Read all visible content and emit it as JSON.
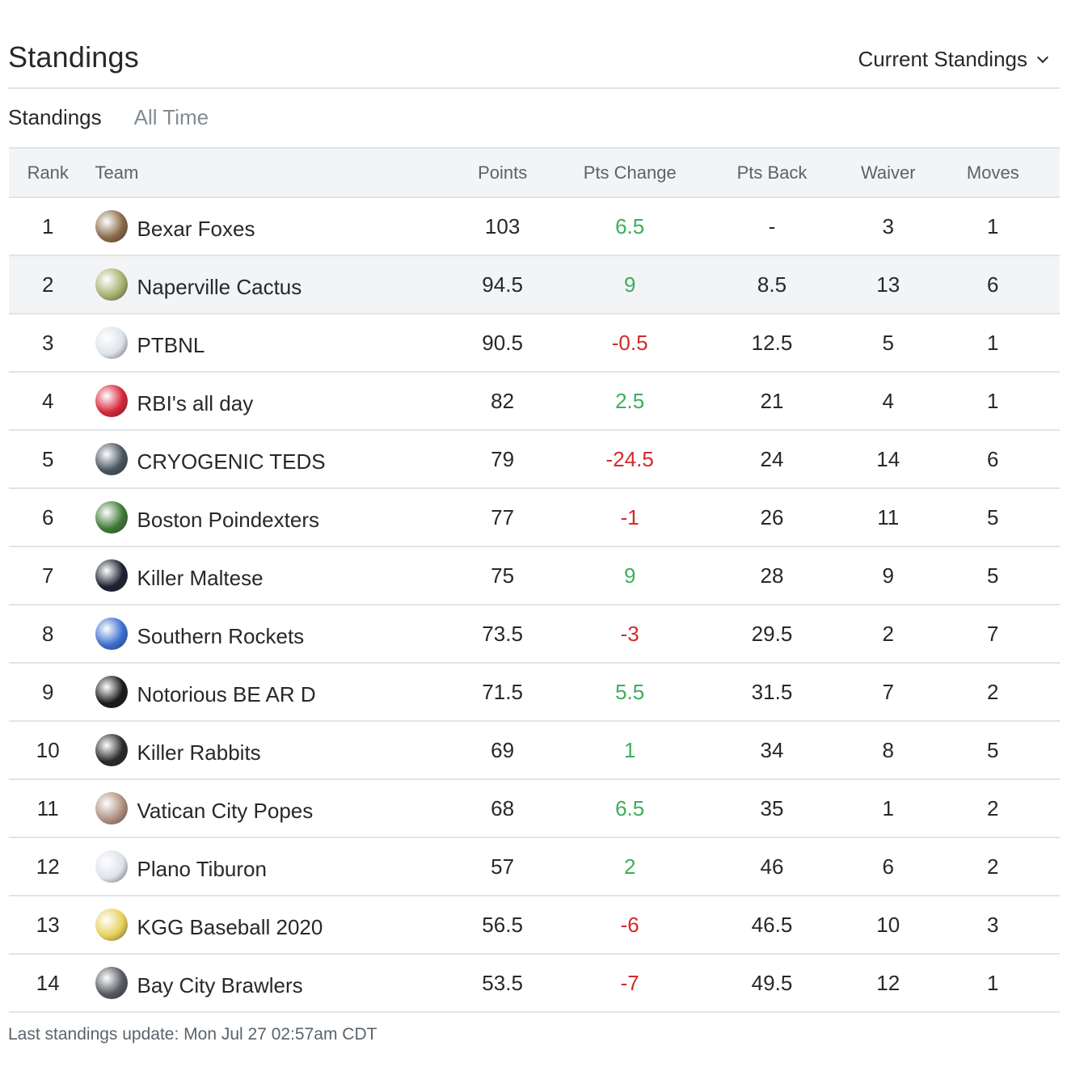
{
  "header": {
    "title": "Standings",
    "dropdown_label": "Current Standings"
  },
  "tabs": [
    {
      "label": "Standings"
    },
    {
      "label": "All Time"
    }
  ],
  "columns": {
    "rank": "Rank",
    "team": "Team",
    "points": "Points",
    "pts_change": "Pts Change",
    "pts_back": "Pts Back",
    "waiver": "Waiver",
    "moves": "Moves"
  },
  "rows": [
    {
      "rank": "1",
      "team": "Bexar Foxes",
      "points": "103",
      "pts_change": "6.5",
      "trend": "pos",
      "pts_back": "-",
      "waiver": "3",
      "moves": "1",
      "avatar_icon": "fox-team-logo-icon",
      "avatar_color": "#8a6a4a"
    },
    {
      "rank": "2",
      "team": "Naperville Cactus",
      "points": "94.5",
      "pts_change": "9",
      "trend": "pos",
      "pts_back": "8.5",
      "waiver": "13",
      "moves": "6",
      "avatar_icon": "cactus-team-logo-icon",
      "avatar_color": "#a8b070"
    },
    {
      "rank": "3",
      "team": "PTBNL",
      "points": "90.5",
      "pts_change": "-0.5",
      "trend": "neg",
      "pts_back": "12.5",
      "waiver": "5",
      "moves": "1",
      "avatar_icon": "cap-team-logo-icon",
      "avatar_color": "#dde3ea"
    },
    {
      "rank": "4",
      "team": "RBI's all day",
      "points": "82",
      "pts_change": "2.5",
      "trend": "pos",
      "pts_back": "21",
      "waiver": "4",
      "moves": "1",
      "avatar_icon": "cap-team-logo-icon",
      "avatar_color": "#d8263a"
    },
    {
      "rank": "5",
      "team": "CRYOGENIC TEDS",
      "points": "79",
      "pts_change": "-24.5",
      "trend": "neg",
      "pts_back": "24",
      "waiver": "14",
      "moves": "6",
      "avatar_icon": "jar-team-logo-icon",
      "avatar_color": "#4a5560"
    },
    {
      "rank": "6",
      "team": "Boston Poindexters",
      "points": "77",
      "pts_change": "-1",
      "trend": "neg",
      "pts_back": "26",
      "waiver": "11",
      "moves": "5",
      "avatar_icon": "frog-team-logo-icon",
      "avatar_color": "#3f7a36"
    },
    {
      "rank": "7",
      "team": "Killer Maltese",
      "points": "75",
      "pts_change": "9",
      "trend": "pos",
      "pts_back": "28",
      "waiver": "9",
      "moves": "5",
      "avatar_icon": "dog-team-logo-icon",
      "avatar_color": "#1e2230"
    },
    {
      "rank": "8",
      "team": "Southern Rockets",
      "points": "73.5",
      "pts_change": "-3",
      "trend": "neg",
      "pts_back": "29.5",
      "waiver": "2",
      "moves": "7",
      "avatar_icon": "rocket-team-logo-icon",
      "avatar_color": "#3c6fd0"
    },
    {
      "rank": "9",
      "team": "Notorious BE AR D",
      "points": "71.5",
      "pts_change": "5.5",
      "trend": "pos",
      "pts_back": "31.5",
      "waiver": "7",
      "moves": "2",
      "avatar_icon": "bear-seal-team-logo-icon",
      "avatar_color": "#1a1a1a"
    },
    {
      "rank": "10",
      "team": "Killer Rabbits",
      "points": "69",
      "pts_change": "1",
      "trend": "pos",
      "pts_back": "34",
      "waiver": "8",
      "moves": "5",
      "avatar_icon": "rabbit-team-logo-icon",
      "avatar_color": "#2a2a2a"
    },
    {
      "rank": "11",
      "team": "Vatican City Popes",
      "points": "68",
      "pts_change": "6.5",
      "trend": "pos",
      "pts_back": "35",
      "waiver": "1",
      "moves": "2",
      "avatar_icon": "pope-team-logo-icon",
      "avatar_color": "#b09080"
    },
    {
      "rank": "12",
      "team": "Plano Tiburon",
      "points": "57",
      "pts_change": "2",
      "trend": "pos",
      "pts_back": "46",
      "waiver": "6",
      "moves": "2",
      "avatar_icon": "cap-team-logo-icon",
      "avatar_color": "#dde3ea"
    },
    {
      "rank": "13",
      "team": "KGG Baseball 2020",
      "points": "56.5",
      "pts_change": "-6",
      "trend": "neg",
      "pts_back": "46.5",
      "waiver": "10",
      "moves": "3",
      "avatar_icon": "cap-team-logo-icon",
      "avatar_color": "#e7cf5a"
    },
    {
      "rank": "14",
      "team": "Bay City Brawlers",
      "points": "53.5",
      "pts_change": "-7",
      "trend": "neg",
      "pts_back": "49.5",
      "waiver": "12",
      "moves": "1",
      "avatar_icon": "puppy-team-logo-icon",
      "avatar_color": "#555a60"
    }
  ],
  "highlight_rank": "2",
  "colors": {
    "positive": "#3dae5c",
    "negative": "#d32b2b",
    "header_bg": "#f3f4f5",
    "border": "#e0e4e9"
  },
  "footer": {
    "update_text": "Last standings update: Mon Jul 27 02:57am CDT"
  }
}
